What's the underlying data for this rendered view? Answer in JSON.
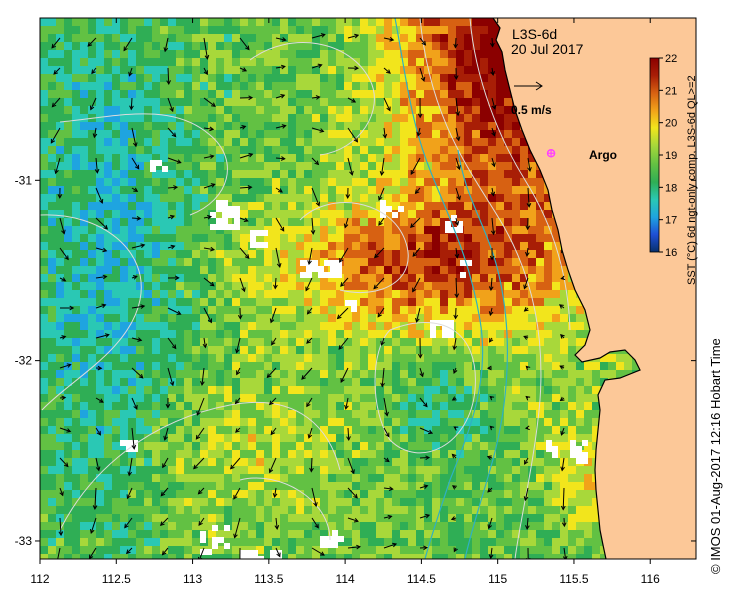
{
  "map": {
    "product": "L3S-6d",
    "date": "20 Jul 2017",
    "scale_label": "0.5 m/s",
    "argo_label": "Argo",
    "credit": "© IMOS 01-Aug-2017 12:16 Hobart Time",
    "lon_ticks": [
      "112",
      "112.5",
      "113",
      "113.5",
      "114",
      "114.5",
      "115",
      "115.5",
      "116"
    ],
    "lat_ticks": [
      "-31",
      "-32",
      "-33"
    ],
    "extent": {
      "lon_min": 112.0,
      "lon_max": 116.3,
      "lat_min": -33.1,
      "lat_max": -30.1
    },
    "argo_position": {
      "lon": 115.35,
      "lat": -30.85
    }
  },
  "colorbar": {
    "title": "SST (°C) 6d ngt-only comp, L3S-6d QL>=2",
    "ticks": [
      "22",
      "21",
      "20",
      "19",
      "18",
      "17",
      "16"
    ],
    "min": 16,
    "max": 22,
    "colors": [
      "#08306b",
      "#1f4fd6",
      "#1fa4e0",
      "#2ac8b4",
      "#2fae55",
      "#62c143",
      "#a8d83a",
      "#f2e51c",
      "#f1a21a",
      "#d76112",
      "#a81e06",
      "#8b0000"
    ]
  },
  "colors": {
    "land": "#fcc898",
    "missing": "#ffffff",
    "contour": "#dcdcdc",
    "isobath_shelf": "#2fb1c2",
    "argo": "#ff40ff"
  }
}
